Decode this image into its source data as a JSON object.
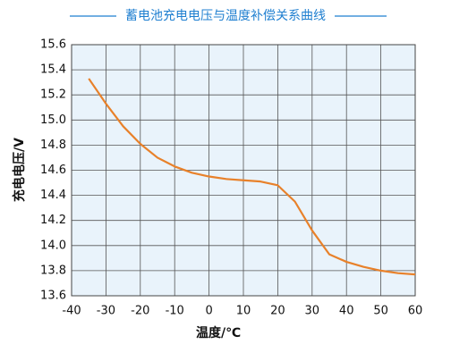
{
  "chart_data": {
    "type": "line",
    "title": "蓄电池充电电压与温度补偿关系曲线",
    "x_label": "温度/℃",
    "y_label": "充电电压/V",
    "x": [
      -35,
      -30,
      -25,
      -20,
      -15,
      -10,
      -5,
      0,
      5,
      10,
      15,
      20,
      25,
      30,
      35,
      40,
      45,
      50,
      55,
      60
    ],
    "series": [
      {
        "color": "#e8812a",
        "values": [
          15.33,
          15.13,
          14.95,
          14.81,
          14.7,
          14.63,
          14.58,
          14.55,
          14.53,
          14.52,
          14.51,
          14.48,
          14.35,
          14.12,
          13.93,
          13.87,
          13.83,
          13.8,
          13.78,
          13.77
        ]
      }
    ],
    "xlim": [
      -40,
      60
    ],
    "xticks": [
      -40,
      -30,
      -20,
      -10,
      0,
      10,
      20,
      30,
      40,
      50,
      60
    ],
    "ylim": [
      13.6,
      15.6
    ],
    "yticks": [
      13.6,
      13.8,
      {
        "value": 14,
        "label": "14.0"
      },
      14.2,
      14.4,
      14.6,
      14.8,
      {
        "value": 15,
        "label": "15.0"
      },
      15.2,
      15.4,
      15.6
    ],
    "grid": true,
    "title_color": "#1f7fd0",
    "plot_background": "#e9f3fb"
  }
}
